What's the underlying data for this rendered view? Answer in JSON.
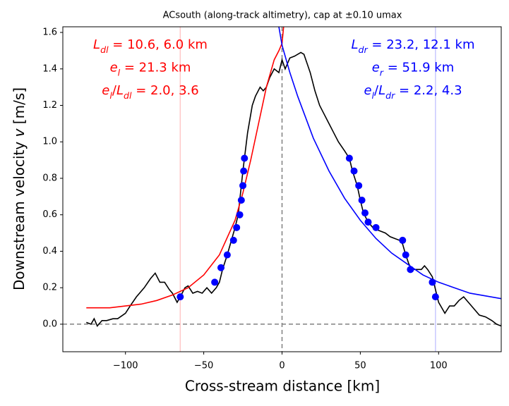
{
  "chart_data": {
    "type": "line",
    "title": "ACsouth (along-track altimetry), cap at ±0.10 umax",
    "xlabel": "Cross-stream distance [km]",
    "ylabel": [
      {
        "text": "Downstream velocity "
      },
      {
        "text": "v",
        "style": "italic"
      },
      {
        "text": " [m/s]"
      }
    ],
    "xlim": [
      -140,
      140
    ],
    "ylim": [
      -0.151,
      1.631
    ],
    "xticks": [
      {
        "value": -100,
        "label": "−100"
      },
      {
        "value": -50,
        "label": "−50"
      },
      0,
      50,
      100
    ],
    "yticks": [
      {
        "value": 0,
        "label": "0.0"
      },
      0.2,
      0.4,
      0.6,
      0.8,
      {
        "value": 1,
        "label": "1.0"
      },
      1.2,
      1.4,
      1.6
    ],
    "vlines": [
      {
        "x": -65,
        "color": "#ffc8c8",
        "dashed": false
      },
      {
        "x": 98,
        "color": "#c8c8ff",
        "dashed": false
      },
      {
        "x": 0,
        "color": "#808080",
        "dashed": true
      }
    ],
    "hlines": [
      {
        "y": 0,
        "color": "#808080",
        "dashed": true
      }
    ],
    "lines": [
      {
        "color": "#000000",
        "x": [
          -125,
          -122,
          -120,
          -118,
          -115,
          -112,
          -108,
          -105,
          -100,
          -97,
          -93,
          -88,
          -84,
          -81,
          -78,
          -75,
          -72,
          -70,
          -67,
          -65,
          -62,
          -60,
          -57,
          -54,
          -51,
          -48,
          -45,
          -42,
          -40,
          -38,
          -35,
          -33,
          -30,
          -28,
          -27,
          -26,
          -25,
          -24,
          -22,
          -19,
          -17,
          -14,
          -12,
          -10,
          -8,
          -5,
          -2,
          0,
          2,
          5,
          8,
          10,
          12,
          14,
          16,
          18,
          21,
          24,
          27,
          30,
          33,
          36,
          40,
          43,
          45,
          48,
          50,
          52,
          55,
          58,
          60,
          63,
          66,
          69,
          72,
          75,
          77,
          79,
          81,
          83,
          86,
          89,
          91,
          93,
          96,
          98,
          100,
          102,
          104,
          107,
          110,
          113,
          116,
          119,
          122,
          126,
          130,
          134,
          137,
          140
        ],
        "values": [
          0.01,
          0.0,
          0.03,
          -0.01,
          0.02,
          0.02,
          0.03,
          0.03,
          0.06,
          0.1,
          0.15,
          0.2,
          0.25,
          0.28,
          0.23,
          0.23,
          0.19,
          0.17,
          0.12,
          0.15,
          0.2,
          0.21,
          0.17,
          0.18,
          0.17,
          0.2,
          0.17,
          0.2,
          0.23,
          0.3,
          0.38,
          0.44,
          0.53,
          0.6,
          0.68,
          0.76,
          0.84,
          0.91,
          1.05,
          1.2,
          1.25,
          1.3,
          1.28,
          1.3,
          1.35,
          1.4,
          1.38,
          1.45,
          1.4,
          1.46,
          1.47,
          1.48,
          1.49,
          1.48,
          1.43,
          1.38,
          1.28,
          1.2,
          1.15,
          1.1,
          1.05,
          1.0,
          0.95,
          0.91,
          0.84,
          0.76,
          0.68,
          0.61,
          0.56,
          0.53,
          0.52,
          0.51,
          0.5,
          0.48,
          0.47,
          0.46,
          0.44,
          0.38,
          0.33,
          0.3,
          0.3,
          0.3,
          0.32,
          0.3,
          0.26,
          0.19,
          0.12,
          0.09,
          0.06,
          0.1,
          0.1,
          0.13,
          0.15,
          0.12,
          0.09,
          0.05,
          0.04,
          0.02,
          0.0,
          -0.01
        ]
      },
      {
        "color": "#ff0000",
        "x": [
          -125,
          -110,
          -100,
          -90,
          -80,
          -70,
          -60,
          -50,
          -40,
          -30,
          -25,
          -20,
          -15,
          -10,
          -5,
          -2,
          0,
          1
        ],
        "values": [
          0.09,
          0.09,
          0.1,
          0.11,
          0.13,
          0.16,
          0.2,
          0.27,
          0.38,
          0.57,
          0.72,
          0.9,
          1.1,
          1.3,
          1.45,
          1.5,
          1.54,
          1.63
        ]
      },
      {
        "color": "#0000ff",
        "x": [
          -2,
          0,
          5,
          10,
          20,
          30,
          40,
          50,
          60,
          70,
          80,
          90,
          100,
          110,
          120,
          130,
          140
        ],
        "values": [
          1.63,
          1.53,
          1.38,
          1.25,
          1.02,
          0.84,
          0.69,
          0.57,
          0.47,
          0.39,
          0.33,
          0.27,
          0.23,
          0.2,
          0.17,
          0.155,
          0.14
        ]
      }
    ],
    "points": {
      "color": "#0000ff",
      "x": [
        -65,
        -43,
        -39,
        -35,
        -31,
        -29,
        -27,
        -26,
        -25,
        -24.5,
        -24,
        43,
        46,
        49,
        51,
        53,
        55,
        60,
        77,
        79,
        82,
        96,
        98
      ],
      "values": [
        0.15,
        0.23,
        0.31,
        0.38,
        0.46,
        0.53,
        0.6,
        0.68,
        0.76,
        0.84,
        0.91,
        0.91,
        0.84,
        0.76,
        0.68,
        0.61,
        0.56,
        0.53,
        0.46,
        0.38,
        0.3,
        0.23,
        0.15
      ]
    },
    "annotations": [
      {
        "color": "#ff0000",
        "lines": [
          [
            {
              "text": "L",
              "style": "italic"
            },
            {
              "text": "dl",
              "style": "sub"
            },
            {
              "text": " = 10.6, 6.0 km"
            }
          ],
          [
            {
              "text": "e",
              "style": "italic"
            },
            {
              "text": "l",
              "style": "sub"
            },
            {
              "text": " = 21.3 km"
            }
          ],
          [
            {
              "text": "e",
              "style": "italic"
            },
            {
              "text": "l",
              "style": "sub"
            },
            {
              "text": "/"
            },
            {
              "text": "L",
              "style": "italic"
            },
            {
              "text": "dl",
              "style": "sub"
            },
            {
              "text": " = 2.0, 3.6"
            }
          ]
        ]
      },
      {
        "color": "#0000ff",
        "lines": [
          [
            {
              "text": "L",
              "style": "italic"
            },
            {
              "text": "dr",
              "style": "sub"
            },
            {
              "text": " = 23.2, 12.1 km"
            }
          ],
          [
            {
              "text": "e",
              "style": "italic"
            },
            {
              "text": "r",
              "style": "sub"
            },
            {
              "text": " = 51.9 km"
            }
          ],
          [
            {
              "text": "e",
              "style": "italic"
            },
            {
              "text": "l",
              "style": "sub"
            },
            {
              "text": "/"
            },
            {
              "text": "L",
              "style": "italic"
            },
            {
              "text": "dr",
              "style": "sub"
            },
            {
              "text": " = 2.2, 4.3"
            }
          ]
        ]
      }
    ]
  }
}
